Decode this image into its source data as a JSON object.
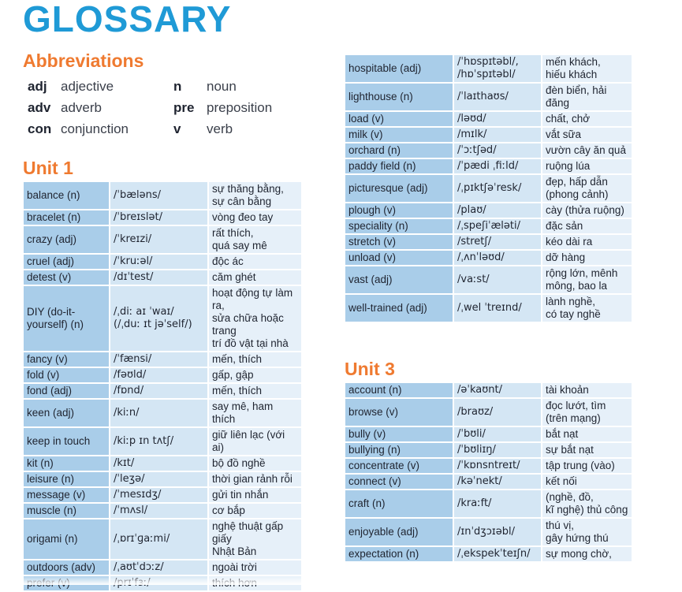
{
  "title": "GLOSSARY",
  "abbreviations": {
    "heading": "Abbreviations",
    "rows": [
      {
        "c1": "adj",
        "m1": "adjective",
        "c2": "n",
        "m2": "noun"
      },
      {
        "c1": "adv",
        "m1": "adverb",
        "c2": "pre",
        "m2": "preposition"
      },
      {
        "c1": "con",
        "m1": "conjunction",
        "c2": "v",
        "m2": "verb"
      }
    ]
  },
  "unit1": {
    "heading": "Unit 1",
    "rows": [
      [
        "balance (n)",
        "/ˈbæləns/",
        "sự thăng bằng,\nsự cân bằng"
      ],
      [
        "bracelet (n)",
        "/ˈbreɪslət/",
        "vòng đeo tay"
      ],
      [
        "crazy (adj)",
        "/ˈkreɪzi/",
        "rất thích,\nquá say mê"
      ],
      [
        "cruel (adj)",
        "/ˈkruːəl/",
        "độc ác"
      ],
      [
        "detest (v)",
        "/dɪˈtest/",
        "căm ghét"
      ],
      [
        "DIY (do-it-\nyourself) (n)",
        "/ˌdiː aɪ ˈwaɪ/\n(/ˌduː ɪt jəˈself/)",
        "hoạt động tự làm ra,\nsửa chữa hoặc trang\ntrí đồ vật tại nhà"
      ],
      [
        "fancy (v)",
        "/ˈfænsi/",
        "mến, thích"
      ],
      [
        "fold (v)",
        "/fəʊld/",
        "gấp, gập"
      ],
      [
        "fond  (adj)",
        "/fɒnd/",
        "mến, thích"
      ],
      [
        "keen (adj)",
        "/kiːn/",
        "say mê, ham thích"
      ],
      [
        "keep in touch",
        "/kiːp ɪn tʌtʃ/",
        "giữ liên lạc (với ai)"
      ],
      [
        "kit (n)",
        "/kɪt/",
        "bộ đồ nghề"
      ],
      [
        "leisure (n)",
        "/ˈleʒə/",
        "thời gian rảnh rỗi"
      ],
      [
        "message (v)",
        "/ˈmesɪdʒ/",
        "gửi tin nhắn"
      ],
      [
        "muscle (n)",
        "/ˈmʌsl/",
        "cơ bắp"
      ],
      [
        "origami (n)",
        "/ˌɒrɪˈɡaːmi/",
        "nghệ thuật gấp giấy\nNhật Bản"
      ],
      [
        "outdoors (adv)",
        "/ˌaʊtˈdɔːz/",
        "ngoài trời"
      ],
      [
        "prefer (v)",
        "/prɪˈfɜː/",
        "thích hơn"
      ]
    ]
  },
  "unit2": {
    "rows": [
      [
        "hospitable (adj)",
        "/ˈhɒspɪtəbl/,\n/hɒˈspɪtəbl/",
        "mến khách,\nhiếu khách"
      ],
      [
        "lighthouse (n)",
        "/ˈlaɪthaʊs/",
        "đèn biển, hải đăng"
      ],
      [
        "load (v)",
        "/ləʊd/",
        "chất, chở"
      ],
      [
        "milk (v)",
        "/mɪlk/",
        "vắt sữa"
      ],
      [
        "orchard (n)",
        "/ˈɔːtʃəd/",
        "vườn cây ăn quả"
      ],
      [
        "paddy field (n)",
        "/ˈpædi ˌfiːld/",
        "ruộng lúa"
      ],
      [
        "picturesque (adj)",
        "/ˌpɪktʃəˈresk/",
        "đẹp, hấp dẫn\n(phong cảnh)"
      ],
      [
        "plough (v)",
        "/plaʊ/",
        "cày (thửa ruộng)"
      ],
      [
        "speciality (n)",
        "/ˌspeʃiˈæləti/",
        "đặc sản"
      ],
      [
        "stretch (v)",
        "/stretʃ/",
        "kéo dài ra"
      ],
      [
        "unload (v)",
        "/ˌʌnˈləʊd/",
        "dỡ hàng"
      ],
      [
        "vast (adj)",
        "/vaːst/",
        "rộng lớn, mênh\nmông, bao la"
      ],
      [
        "well-trained (adj)",
        "/ˌwel ˈtreɪnd/",
        "lành nghề,\ncó tay nghề"
      ]
    ]
  },
  "unit3": {
    "heading": "Unit 3",
    "rows": [
      [
        "account (n)",
        "/əˈkaʊnt/",
        "tài khoản"
      ],
      [
        "browse (v)",
        "/braʊz/",
        "đọc lướt, tìm\n(trên mạng)"
      ],
      [
        "bully (v)",
        "/ˈbʊli/",
        "bắt nạt"
      ],
      [
        "bullying (n)",
        "/ˈbʊliɪŋ/",
        "sự bắt nạt"
      ],
      [
        "concentrate (v)",
        "/ˈkɒnsntreɪt/",
        "tập trung (vào)"
      ],
      [
        "connect (v)",
        "/kəˈnekt/",
        "kết nối"
      ],
      [
        "craft (n)",
        "/kraːft/",
        "(nghề, đồ,\nkĩ nghệ) thủ công"
      ],
      [
        "enjoyable (adj)",
        "/ɪnˈdʒɔɪəbl/",
        "thú vị,\ngây hứng thú"
      ],
      [
        "expectation (n)",
        "/ˌekspekˈteɪʃn/",
        "sự mong chờ,"
      ]
    ]
  }
}
